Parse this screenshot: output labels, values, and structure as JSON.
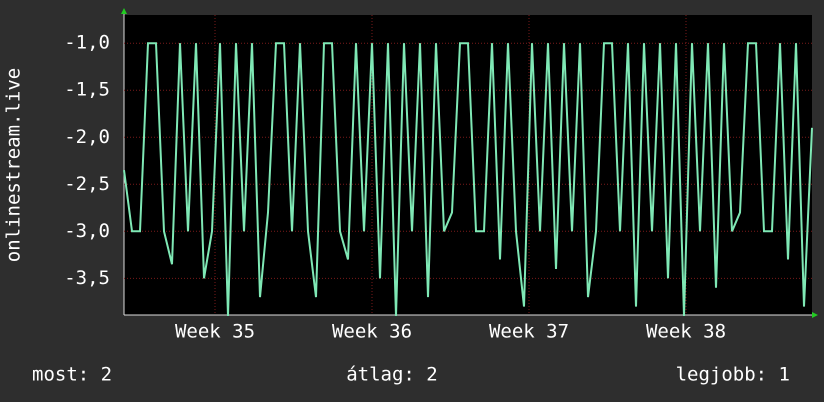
{
  "chart_data": {
    "type": "line",
    "y_label": "onlinestream.live",
    "x": [
      0,
      1,
      2,
      3,
      4,
      5,
      6,
      7,
      8,
      9,
      10,
      11,
      12,
      13,
      14,
      15,
      16,
      17,
      18,
      19,
      20,
      21,
      22,
      23,
      24,
      25,
      26,
      27,
      28,
      29,
      30,
      31,
      32,
      33,
      34,
      35,
      36,
      37,
      38,
      39,
      40,
      41,
      42,
      43,
      44,
      45,
      46,
      47,
      48,
      49,
      50,
      51,
      52,
      53,
      54,
      55,
      56,
      57,
      58,
      59,
      60,
      61,
      62,
      63,
      64,
      65,
      66,
      67,
      68,
      69,
      70,
      71,
      72,
      73,
      74,
      75,
      76,
      77,
      78,
      79,
      80,
      81,
      82,
      83,
      84,
      85,
      86
    ],
    "series": [
      {
        "color": "#7fe8b5",
        "values": [
          -2.35,
          -3.0,
          -3.0,
          -1.0,
          -1.0,
          -3.0,
          -3.35,
          -1.0,
          -3.0,
          -1.0,
          -3.5,
          -3.0,
          -1.0,
          -3.9,
          -1.0,
          -3.0,
          -1.0,
          -3.7,
          -2.8,
          -1.0,
          -1.0,
          -3.0,
          -1.0,
          -3.0,
          -3.7,
          -1.0,
          -1.0,
          -3.0,
          -3.3,
          -1.0,
          -3.0,
          -1.0,
          -3.5,
          -1.0,
          -3.9,
          -1.0,
          -3.0,
          -1.0,
          -3.7,
          -1.0,
          -3.0,
          -2.8,
          -1.0,
          -1.0,
          -3.0,
          -3.0,
          -1.0,
          -3.3,
          -1.0,
          -3.0,
          -3.8,
          -1.0,
          -3.0,
          -1.0,
          -3.4,
          -1.0,
          -3.0,
          -1.0,
          -3.7,
          -3.0,
          -1.0,
          -1.0,
          -3.0,
          -1.0,
          -3.8,
          -1.0,
          -3.0,
          -1.0,
          -3.5,
          -1.0,
          -3.9,
          -1.0,
          -3.0,
          -1.0,
          -3.6,
          -1.0,
          -3.0,
          -2.8,
          -1.0,
          -1.0,
          -3.0,
          -3.0,
          -1.0,
          -3.3,
          -1.0,
          -3.8,
          -1.9
        ]
      }
    ],
    "xlim": [
      0,
      86
    ],
    "xticks": [
      {
        "value": 11.375,
        "label": "Week 35"
      },
      {
        "value": 31,
        "label": "Week 36"
      },
      {
        "value": 50.625,
        "label": "Week 37"
      },
      {
        "value": 70.25,
        "label": "Week 38"
      }
    ],
    "ylim": [
      -3.89,
      -0.7
    ],
    "yticks": [
      {
        "value": -1.0,
        "label": "-1,0"
      },
      {
        "value": -1.5,
        "label": "-1,5"
      },
      {
        "value": -2.0,
        "label": "-2,0"
      },
      {
        "value": -2.5,
        "label": "-2,5"
      },
      {
        "value": -3.0,
        "label": "-3,0"
      },
      {
        "value": -3.5,
        "label": "-3,5"
      }
    ],
    "grid": true,
    "stats": [
      "most: 2",
      "átlag: 2",
      "legjobb: 1"
    ]
  }
}
